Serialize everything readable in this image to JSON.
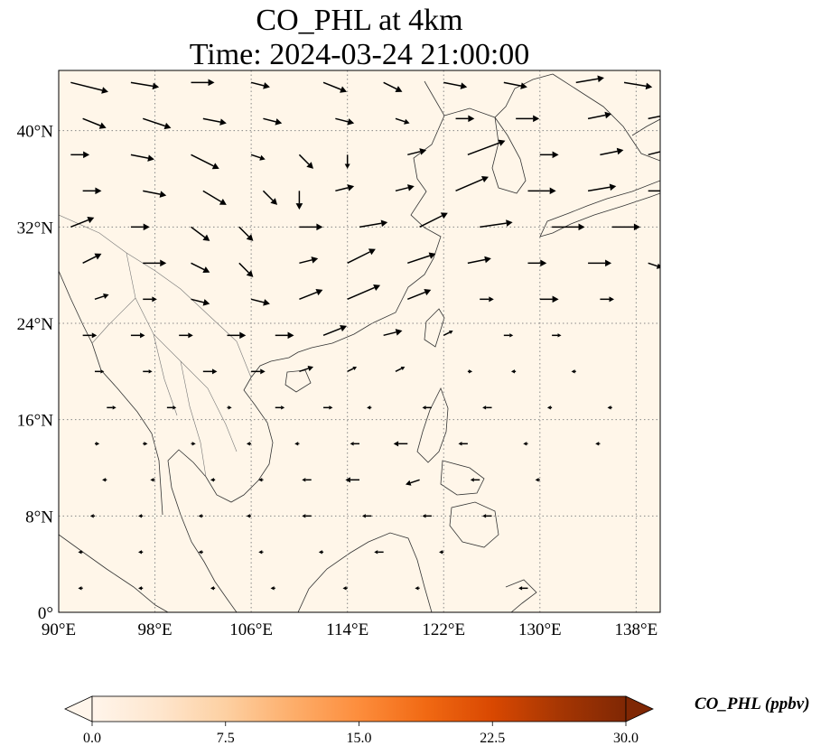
{
  "title": "CO_PHL at 4km",
  "subtitle": "Time: 2024-03-24 21:00:00",
  "map": {
    "projection": "PlateCarree",
    "lon_range": [
      90,
      140
    ],
    "lat_range": [
      0,
      45
    ],
    "lon_ticks": [
      90,
      98,
      106,
      114,
      122,
      130,
      138
    ],
    "lat_ticks": [
      0,
      8,
      16,
      24,
      32,
      40
    ],
    "lon_tick_labels": [
      "90°E",
      "98°E",
      "106°E",
      "114°E",
      "122°E",
      "130°E",
      "138°E"
    ],
    "lat_tick_labels": [
      "0°",
      "8°N",
      "16°N",
      "24°N",
      "32°N",
      "40°N"
    ],
    "gridlines": "dotted",
    "field_fill_color": "#fff6e9",
    "coastline_color": "#333333",
    "vector_color": "#000000"
  },
  "colorbar": {
    "label": "CO_PHL (ppbv)",
    "min": 0.0,
    "max": 30.0,
    "ticks": [
      "0.0",
      "7.5",
      "15.0",
      "22.5",
      "30.0"
    ],
    "extend": "both",
    "colormap": [
      "#fff5eb",
      "#fee6ce",
      "#fdd0a2",
      "#fdae6b",
      "#fd8d3c",
      "#f16913",
      "#d94801",
      "#a63603",
      "#7f2704"
    ]
  },
  "wind_vectors": [
    {
      "lon": 91,
      "lat": 44,
      "u": 8,
      "v": -2
    },
    {
      "lon": 96,
      "lat": 44,
      "u": 6,
      "v": -1
    },
    {
      "lon": 101,
      "lat": 44,
      "u": 5,
      "v": 0
    },
    {
      "lon": 106,
      "lat": 44,
      "u": 4,
      "v": -1
    },
    {
      "lon": 112,
      "lat": 44,
      "u": 5,
      "v": -2
    },
    {
      "lon": 117,
      "lat": 44,
      "u": 4,
      "v": -2
    },
    {
      "lon": 122,
      "lat": 44,
      "u": 5,
      "v": -1
    },
    {
      "lon": 127,
      "lat": 44,
      "u": 5,
      "v": -1
    },
    {
      "lon": 133,
      "lat": 44,
      "u": 6,
      "v": 1
    },
    {
      "lon": 137,
      "lat": 44,
      "u": 6,
      "v": -1
    },
    {
      "lon": 92,
      "lat": 41,
      "u": 5,
      "v": -2
    },
    {
      "lon": 97,
      "lat": 41,
      "u": 6,
      "v": -2
    },
    {
      "lon": 102,
      "lat": 41,
      "u": 5,
      "v": -1
    },
    {
      "lon": 107,
      "lat": 41,
      "u": 4,
      "v": -1
    },
    {
      "lon": 113,
      "lat": 41,
      "u": 4,
      "v": -1
    },
    {
      "lon": 118,
      "lat": 41,
      "u": 3,
      "v": -1
    },
    {
      "lon": 123,
      "lat": 41,
      "u": 4,
      "v": 0
    },
    {
      "lon": 128,
      "lat": 41,
      "u": 5,
      "v": 0
    },
    {
      "lon": 134,
      "lat": 41,
      "u": 5,
      "v": 1
    },
    {
      "lon": 139,
      "lat": 41,
      "u": 5,
      "v": 1
    },
    {
      "lon": 91,
      "lat": 38,
      "u": 4,
      "v": 0
    },
    {
      "lon": 96,
      "lat": 38,
      "u": 5,
      "v": -1
    },
    {
      "lon": 101,
      "lat": 38,
      "u": 6,
      "v": -3
    },
    {
      "lon": 106,
      "lat": 38,
      "u": 3,
      "v": -1
    },
    {
      "lon": 110,
      "lat": 38,
      "u": 3,
      "v": -3
    },
    {
      "lon": 114,
      "lat": 38,
      "u": 0,
      "v": -3
    },
    {
      "lon": 119,
      "lat": 38,
      "u": 4,
      "v": 1
    },
    {
      "lon": 124,
      "lat": 38,
      "u": 8,
      "v": 3
    },
    {
      "lon": 130,
      "lat": 38,
      "u": 4,
      "v": 0
    },
    {
      "lon": 135,
      "lat": 38,
      "u": 5,
      "v": 1
    },
    {
      "lon": 139,
      "lat": 38,
      "u": 4,
      "v": 1
    },
    {
      "lon": 92,
      "lat": 35,
      "u": 4,
      "v": 0
    },
    {
      "lon": 97,
      "lat": 35,
      "u": 5,
      "v": -1
    },
    {
      "lon": 102,
      "lat": 35,
      "u": 5,
      "v": -3
    },
    {
      "lon": 107,
      "lat": 35,
      "u": 3,
      "v": -3
    },
    {
      "lon": 110,
      "lat": 35,
      "u": 0,
      "v": -4
    },
    {
      "lon": 113,
      "lat": 35,
      "u": 4,
      "v": 1
    },
    {
      "lon": 118,
      "lat": 35,
      "u": 4,
      "v": 1
    },
    {
      "lon": 123,
      "lat": 35,
      "u": 7,
      "v": 3
    },
    {
      "lon": 129,
      "lat": 35,
      "u": 6,
      "v": 0
    },
    {
      "lon": 134,
      "lat": 35,
      "u": 6,
      "v": 1
    },
    {
      "lon": 139,
      "lat": 35,
      "u": 5,
      "v": 0
    },
    {
      "lon": 91,
      "lat": 32,
      "u": 5,
      "v": 2
    },
    {
      "lon": 96,
      "lat": 32,
      "u": 4,
      "v": 0
    },
    {
      "lon": 101,
      "lat": 32,
      "u": 4,
      "v": -3
    },
    {
      "lon": 105,
      "lat": 32,
      "u": 3,
      "v": -3
    },
    {
      "lon": 110,
      "lat": 32,
      "u": 5,
      "v": 0
    },
    {
      "lon": 115,
      "lat": 32,
      "u": 6,
      "v": 1
    },
    {
      "lon": 120,
      "lat": 32,
      "u": 6,
      "v": 3
    },
    {
      "lon": 125,
      "lat": 32,
      "u": 7,
      "v": 1
    },
    {
      "lon": 131,
      "lat": 32,
      "u": 7,
      "v": 0
    },
    {
      "lon": 136,
      "lat": 32,
      "u": 6,
      "v": 0
    },
    {
      "lon": 92,
      "lat": 29,
      "u": 4,
      "v": 2
    },
    {
      "lon": 97,
      "lat": 29,
      "u": 5,
      "v": 0
    },
    {
      "lon": 101,
      "lat": 29,
      "u": 4,
      "v": -2
    },
    {
      "lon": 105,
      "lat": 29,
      "u": 3,
      "v": -3
    },
    {
      "lon": 110,
      "lat": 29,
      "u": 4,
      "v": 1
    },
    {
      "lon": 114,
      "lat": 29,
      "u": 6,
      "v": 3
    },
    {
      "lon": 119,
      "lat": 29,
      "u": 6,
      "v": 2
    },
    {
      "lon": 124,
      "lat": 29,
      "u": 5,
      "v": 1
    },
    {
      "lon": 129,
      "lat": 29,
      "u": 4,
      "v": 0
    },
    {
      "lon": 134,
      "lat": 29,
      "u": 5,
      "v": 0
    },
    {
      "lon": 139,
      "lat": 29,
      "u": 3,
      "v": -1
    },
    {
      "lon": 93,
      "lat": 26,
      "u": 3,
      "v": 1
    },
    {
      "lon": 97,
      "lat": 26,
      "u": 3,
      "v": 0
    },
    {
      "lon": 101,
      "lat": 26,
      "u": 4,
      "v": -1
    },
    {
      "lon": 106,
      "lat": 26,
      "u": 4,
      "v": -1
    },
    {
      "lon": 110,
      "lat": 26,
      "u": 5,
      "v": 2
    },
    {
      "lon": 114,
      "lat": 26,
      "u": 7,
      "v": 3
    },
    {
      "lon": 119,
      "lat": 26,
      "u": 5,
      "v": 2
    },
    {
      "lon": 125,
      "lat": 26,
      "u": 3,
      "v": 0
    },
    {
      "lon": 130,
      "lat": 26,
      "u": 4,
      "v": 0
    },
    {
      "lon": 135,
      "lat": 26,
      "u": 3,
      "v": 0
    },
    {
      "lon": 92,
      "lat": 23,
      "u": 3,
      "v": 0
    },
    {
      "lon": 96,
      "lat": 23,
      "u": 3,
      "v": 0
    },
    {
      "lon": 100,
      "lat": 23,
      "u": 3,
      "v": 0
    },
    {
      "lon": 104,
      "lat": 23,
      "u": 4,
      "v": 0
    },
    {
      "lon": 108,
      "lat": 23,
      "u": 4,
      "v": 0
    },
    {
      "lon": 112,
      "lat": 23,
      "u": 5,
      "v": 2
    },
    {
      "lon": 117,
      "lat": 23,
      "u": 4,
      "v": 1
    },
    {
      "lon": 122,
      "lat": 23,
      "u": 2,
      "v": 1
    },
    {
      "lon": 127,
      "lat": 23,
      "u": 2,
      "v": 0
    },
    {
      "lon": 131,
      "lat": 23,
      "u": 2,
      "v": 0
    },
    {
      "lon": 93,
      "lat": 20,
      "u": 2,
      "v": 0
    },
    {
      "lon": 97,
      "lat": 20,
      "u": 2,
      "v": 0
    },
    {
      "lon": 102,
      "lat": 20,
      "u": 3,
      "v": 0
    },
    {
      "lon": 106,
      "lat": 20,
      "u": 3,
      "v": 0
    },
    {
      "lon": 110,
      "lat": 20,
      "u": 3,
      "v": 1
    },
    {
      "lon": 114,
      "lat": 20,
      "u": 2,
      "v": 1
    },
    {
      "lon": 118,
      "lat": 20,
      "u": 2,
      "v": 1
    },
    {
      "lon": 124,
      "lat": 20,
      "u": 1,
      "v": 0
    },
    {
      "lon": 128,
      "lat": 20,
      "u": -1,
      "v": 0
    },
    {
      "lon": 133,
      "lat": 20,
      "u": -1,
      "v": 0
    },
    {
      "lon": 94,
      "lat": 17,
      "u": 2,
      "v": 0
    },
    {
      "lon": 99,
      "lat": 17,
      "u": 2,
      "v": 0
    },
    {
      "lon": 104,
      "lat": 17,
      "u": 1,
      "v": 0
    },
    {
      "lon": 108,
      "lat": 17,
      "u": 2,
      "v": 0
    },
    {
      "lon": 112,
      "lat": 17,
      "u": 2,
      "v": 0
    },
    {
      "lon": 116,
      "lat": 17,
      "u": -1,
      "v": 0
    },
    {
      "lon": 121,
      "lat": 17,
      "u": -2,
      "v": 0
    },
    {
      "lon": 126,
      "lat": 17,
      "u": -2,
      "v": 0
    },
    {
      "lon": 131,
      "lat": 17,
      "u": -1,
      "v": 0
    },
    {
      "lon": 136,
      "lat": 17,
      "u": -1,
      "v": 0
    },
    {
      "lon": 93,
      "lat": 14,
      "u": 1,
      "v": 0
    },
    {
      "lon": 97,
      "lat": 14,
      "u": 1,
      "v": 0
    },
    {
      "lon": 101,
      "lat": 14,
      "u": 1,
      "v": 0
    },
    {
      "lon": 106,
      "lat": 14,
      "u": -1,
      "v": 0
    },
    {
      "lon": 110,
      "lat": 14,
      "u": -1,
      "v": 0
    },
    {
      "lon": 115,
      "lat": 14,
      "u": -2,
      "v": 0
    },
    {
      "lon": 119,
      "lat": 14,
      "u": -3,
      "v": 0
    },
    {
      "lon": 124,
      "lat": 14,
      "u": -2,
      "v": 0
    },
    {
      "lon": 129,
      "lat": 14,
      "u": -1,
      "v": 0
    },
    {
      "lon": 135,
      "lat": 14,
      "u": -1,
      "v": 0
    },
    {
      "lon": 94,
      "lat": 11,
      "u": -1,
      "v": 0
    },
    {
      "lon": 98,
      "lat": 11,
      "u": -1,
      "v": 0
    },
    {
      "lon": 103,
      "lat": 11,
      "u": -1,
      "v": 0
    },
    {
      "lon": 107,
      "lat": 11,
      "u": -1,
      "v": 0
    },
    {
      "lon": 111,
      "lat": 11,
      "u": -2,
      "v": 0
    },
    {
      "lon": 115,
      "lat": 11,
      "u": -3,
      "v": 0
    },
    {
      "lon": 120,
      "lat": 11,
      "u": -3,
      "v": -1
    },
    {
      "lon": 125,
      "lat": 11,
      "u": -2,
      "v": 0
    },
    {
      "lon": 130,
      "lat": 11,
      "u": -1,
      "v": 0
    },
    {
      "lon": 93,
      "lat": 8,
      "u": -1,
      "v": 0
    },
    {
      "lon": 97,
      "lat": 8,
      "u": -1,
      "v": 0
    },
    {
      "lon": 102,
      "lat": 8,
      "u": -1,
      "v": 0
    },
    {
      "lon": 106,
      "lat": 8,
      "u": -1,
      "v": 0
    },
    {
      "lon": 111,
      "lat": 8,
      "u": -2,
      "v": 0
    },
    {
      "lon": 116,
      "lat": 8,
      "u": -2,
      "v": 0
    },
    {
      "lon": 121,
      "lat": 8,
      "u": -2,
      "v": 0
    },
    {
      "lon": 126,
      "lat": 8,
      "u": -2,
      "v": 0
    },
    {
      "lon": 92,
      "lat": 5,
      "u": -1,
      "v": 0
    },
    {
      "lon": 97,
      "lat": 5,
      "u": -1,
      "v": 0
    },
    {
      "lon": 102,
      "lat": 5,
      "u": -1,
      "v": 0
    },
    {
      "lon": 107,
      "lat": 5,
      "u": -1,
      "v": 0
    },
    {
      "lon": 112,
      "lat": 5,
      "u": -1,
      "v": 0
    },
    {
      "lon": 117,
      "lat": 5,
      "u": -2,
      "v": 0
    },
    {
      "lon": 122,
      "lat": 5,
      "u": -1,
      "v": 0
    },
    {
      "lon": 92,
      "lat": 2,
      "u": -1,
      "v": 0
    },
    {
      "lon": 97,
      "lat": 2,
      "u": -1,
      "v": 0
    },
    {
      "lon": 103,
      "lat": 2,
      "u": -1,
      "v": 0
    },
    {
      "lon": 108,
      "lat": 2,
      "u": -1,
      "v": 0
    },
    {
      "lon": 114,
      "lat": 2,
      "u": -1,
      "v": 0
    },
    {
      "lon": 120,
      "lat": 2,
      "u": -1,
      "v": 0
    },
    {
      "lon": 129,
      "lat": 2,
      "u": -2,
      "v": 0
    }
  ]
}
